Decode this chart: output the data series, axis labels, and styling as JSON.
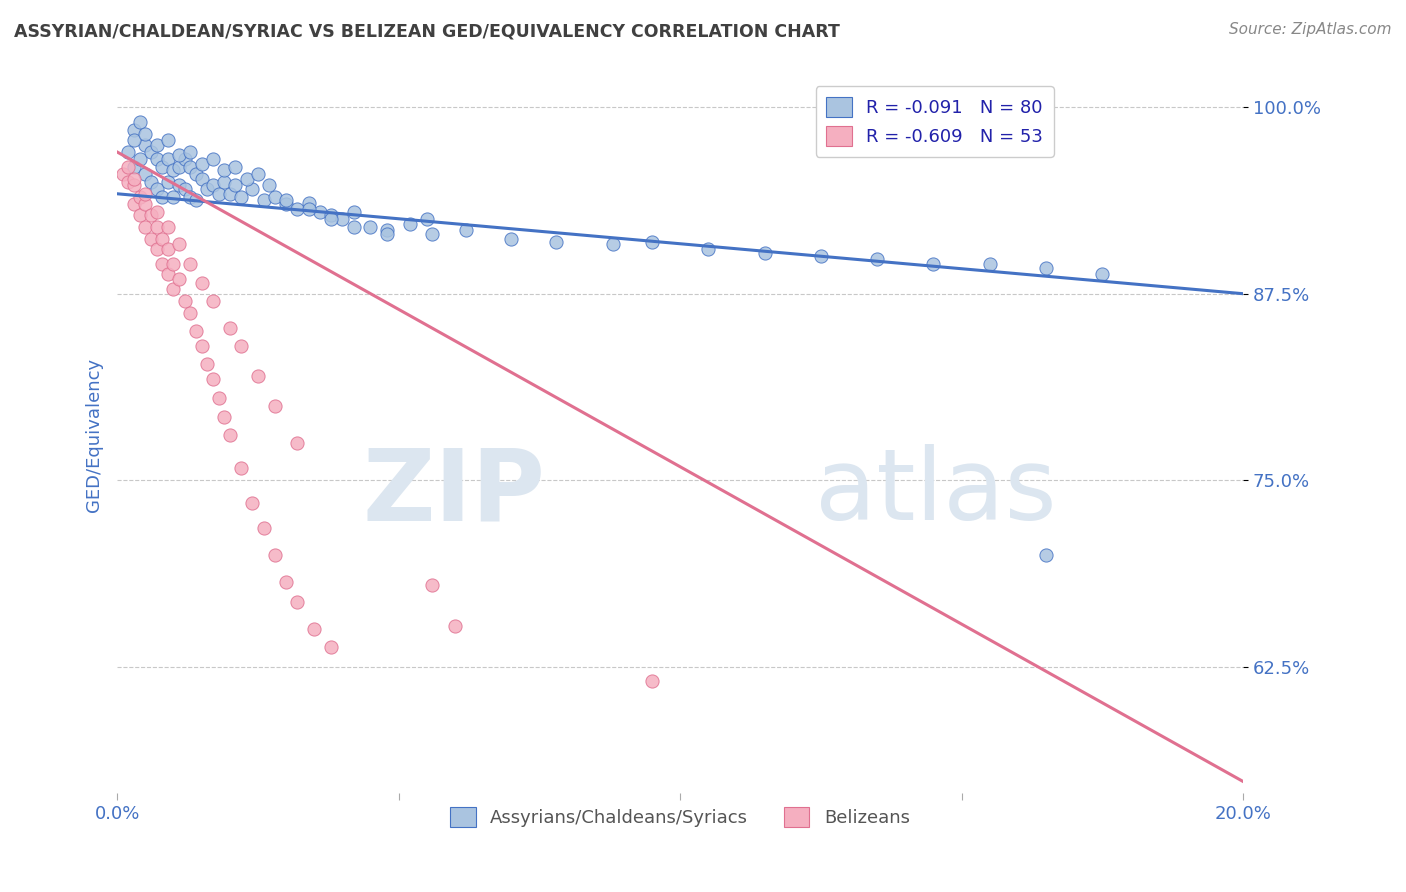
{
  "title": "ASSYRIAN/CHALDEAN/SYRIAC VS BELIZEAN GED/EQUIVALENCY CORRELATION CHART",
  "source": "Source: ZipAtlas.com",
  "ylabel": "GED/Equivalency",
  "xlim": [
    0.0,
    0.2
  ],
  "ylim": [
    0.54,
    1.02
  ],
  "xticks": [
    0.0,
    0.05,
    0.1,
    0.15,
    0.2
  ],
  "xticklabels": [
    "0.0%",
    "",
    "",
    "",
    "20.0%"
  ],
  "yticks": [
    0.625,
    0.75,
    0.875,
    1.0
  ],
  "yticklabels": [
    "62.5%",
    "75.0%",
    "87.5%",
    "100.0%"
  ],
  "legend_labels": [
    "Assyrians/Chaldeans/Syriacs",
    "Belizeans"
  ],
  "legend_r": [
    "R = -0.091",
    "R = -0.609"
  ],
  "legend_n": [
    "N = 80",
    "N = 53"
  ],
  "blue_color": "#aac4e0",
  "pink_color": "#f5afc0",
  "blue_line_color": "#4472c4",
  "pink_line_color": "#e07090",
  "title_color": "#404040",
  "tick_color": "#4472c4",
  "watermark_color": "#dce6f0",
  "background_color": "#ffffff",
  "grid_color": "#c8c8c8",
  "blue_trend_x": [
    0.0,
    0.2
  ],
  "blue_trend_y": [
    0.942,
    0.875
  ],
  "pink_trend_x": [
    0.0,
    0.2
  ],
  "pink_trend_y": [
    0.97,
    0.548
  ],
  "blue_scatter_x": [
    0.002,
    0.003,
    0.003,
    0.004,
    0.004,
    0.005,
    0.005,
    0.006,
    0.006,
    0.007,
    0.007,
    0.008,
    0.008,
    0.009,
    0.009,
    0.01,
    0.01,
    0.011,
    0.011,
    0.012,
    0.012,
    0.013,
    0.013,
    0.014,
    0.014,
    0.015,
    0.016,
    0.017,
    0.018,
    0.019,
    0.02,
    0.021,
    0.022,
    0.024,
    0.026,
    0.028,
    0.03,
    0.032,
    0.034,
    0.036,
    0.038,
    0.04,
    0.042,
    0.045,
    0.048,
    0.052,
    0.056,
    0.062,
    0.07,
    0.078,
    0.088,
    0.095,
    0.105,
    0.115,
    0.125,
    0.135,
    0.145,
    0.155,
    0.165,
    0.175,
    0.003,
    0.005,
    0.007,
    0.009,
    0.011,
    0.013,
    0.015,
    0.017,
    0.019,
    0.021,
    0.023,
    0.025,
    0.027,
    0.03,
    0.034,
    0.038,
    0.042,
    0.048,
    0.055,
    0.165
  ],
  "blue_scatter_y": [
    0.97,
    0.985,
    0.96,
    0.99,
    0.965,
    0.975,
    0.955,
    0.97,
    0.95,
    0.965,
    0.945,
    0.96,
    0.94,
    0.965,
    0.95,
    0.958,
    0.94,
    0.96,
    0.948,
    0.965,
    0.945,
    0.96,
    0.94,
    0.955,
    0.938,
    0.952,
    0.945,
    0.948,
    0.942,
    0.95,
    0.942,
    0.948,
    0.94,
    0.945,
    0.938,
    0.94,
    0.935,
    0.932,
    0.936,
    0.93,
    0.928,
    0.925,
    0.93,
    0.92,
    0.918,
    0.922,
    0.915,
    0.918,
    0.912,
    0.91,
    0.908,
    0.91,
    0.905,
    0.902,
    0.9,
    0.898,
    0.895,
    0.895,
    0.892,
    0.888,
    0.978,
    0.982,
    0.975,
    0.978,
    0.968,
    0.97,
    0.962,
    0.965,
    0.958,
    0.96,
    0.952,
    0.955,
    0.948,
    0.938,
    0.932,
    0.925,
    0.92,
    0.915,
    0.925,
    0.7
  ],
  "pink_scatter_x": [
    0.001,
    0.002,
    0.003,
    0.003,
    0.004,
    0.004,
    0.005,
    0.005,
    0.006,
    0.006,
    0.007,
    0.007,
    0.008,
    0.008,
    0.009,
    0.009,
    0.01,
    0.01,
    0.011,
    0.012,
    0.013,
    0.014,
    0.015,
    0.016,
    0.017,
    0.018,
    0.019,
    0.02,
    0.022,
    0.024,
    0.026,
    0.028,
    0.03,
    0.032,
    0.035,
    0.038,
    0.002,
    0.003,
    0.005,
    0.007,
    0.009,
    0.011,
    0.013,
    0.015,
    0.017,
    0.02,
    0.022,
    0.025,
    0.028,
    0.032,
    0.056,
    0.06,
    0.095
  ],
  "pink_scatter_y": [
    0.955,
    0.95,
    0.948,
    0.935,
    0.94,
    0.928,
    0.935,
    0.92,
    0.928,
    0.912,
    0.92,
    0.905,
    0.912,
    0.895,
    0.905,
    0.888,
    0.895,
    0.878,
    0.885,
    0.87,
    0.862,
    0.85,
    0.84,
    0.828,
    0.818,
    0.805,
    0.792,
    0.78,
    0.758,
    0.735,
    0.718,
    0.7,
    0.682,
    0.668,
    0.65,
    0.638,
    0.96,
    0.952,
    0.942,
    0.93,
    0.92,
    0.908,
    0.895,
    0.882,
    0.87,
    0.852,
    0.84,
    0.82,
    0.8,
    0.775,
    0.68,
    0.652,
    0.615
  ]
}
